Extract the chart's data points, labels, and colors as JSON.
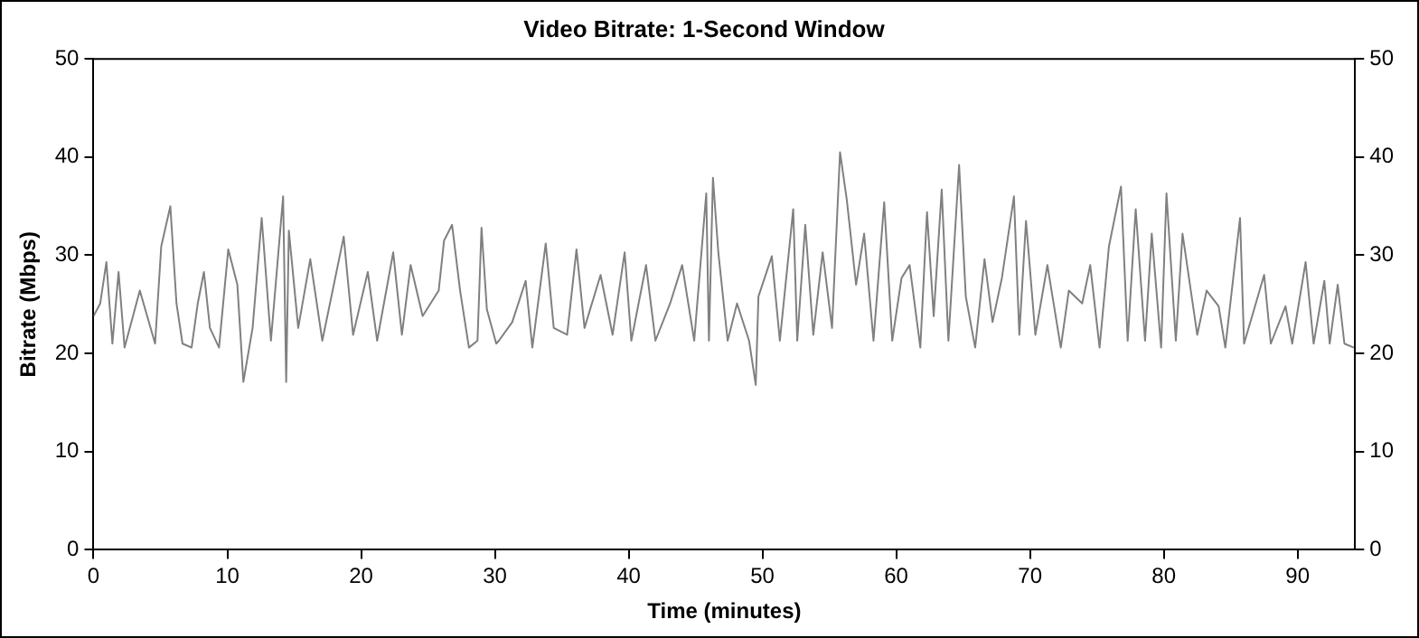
{
  "chart_data": {
    "type": "line",
    "title": "Video Bitrate: 1-Second Window",
    "xlabel": "Time (minutes)",
    "ylabel": "Bitrate (Mbps)",
    "xlim": [
      0,
      94.3
    ],
    "xticks": [
      0,
      10,
      20,
      30,
      40,
      50,
      60,
      70,
      80,
      90
    ],
    "ylim": [
      0,
      50
    ],
    "yticks": [
      0,
      10,
      20,
      30,
      40,
      50
    ],
    "y2lim": [
      0,
      50
    ],
    "y2ticks": [
      0,
      10,
      20,
      30,
      40,
      50
    ],
    "grid": false,
    "legend": false,
    "marker": "none",
    "line_style": "solid",
    "series": [
      {
        "color": "#808080",
        "x": [
          0,
          0.5,
          0.96,
          1.41,
          1.87,
          2.32,
          3.46,
          4.6,
          5.06,
          5.74,
          6.2,
          6.65,
          7.33,
          7.79,
          8.25,
          8.7,
          9.38,
          10.07,
          10.75,
          11.2,
          11.89,
          12.57,
          13.26,
          14.17,
          14.4,
          14.6,
          15.3,
          16.2,
          17.1,
          18.7,
          19.4,
          20.5,
          21.2,
          22.4,
          23.05,
          23.7,
          24.6,
          25.8,
          26.2,
          26.8,
          27.4,
          28.06,
          28.7,
          29.0,
          29.4,
          30.1,
          30.3,
          31.3,
          32.3,
          32.8,
          33.8,
          34.4,
          35.4,
          36.1,
          36.7,
          37.9,
          38.8,
          39.7,
          40.2,
          41.3,
          42,
          43.1,
          44,
          44.9,
          45.8,
          46,
          46.3,
          46.7,
          47.4,
          48.1,
          49,
          49.5,
          49.7,
          50.7,
          51.3,
          52.3,
          52.6,
          53.2,
          53.8,
          54.5,
          55.2,
          55.8,
          56.3,
          57,
          57.6,
          58.3,
          59.1,
          59.7,
          60.4,
          61,
          61.8,
          62.3,
          62.8,
          63.4,
          63.9,
          64.7,
          65.2,
          65.9,
          66.6,
          67.2,
          67.9,
          68.8,
          69.2,
          69.7,
          70.4,
          71.3,
          72.3,
          72.9,
          73.9,
          74.5,
          75.2,
          75.9,
          76.8,
          77.3,
          77.9,
          78.6,
          79.1,
          79.8,
          80.2,
          80.9,
          81.4,
          82.5,
          83.2,
          84.1,
          84.6,
          85.7,
          86,
          87.5,
          88,
          89.1,
          89.6,
          90.6,
          91.2,
          92,
          92.4,
          93,
          93.5,
          94.2
        ],
        "values": [
          23.8,
          25.1,
          29.3,
          21,
          28.3,
          20.6,
          26.4,
          21,
          30.9,
          35,
          25.1,
          21,
          20.6,
          25.1,
          28.3,
          22.6,
          20.6,
          30.6,
          27,
          17.1,
          22.6,
          33.8,
          21.3,
          36,
          17.1,
          32.5,
          22.6,
          29.6,
          21.3,
          31.9,
          21.9,
          28.3,
          21.3,
          30.3,
          21.9,
          29,
          23.8,
          26.4,
          31.5,
          33.1,
          26.4,
          20.6,
          21.3,
          32.8,
          24.5,
          21,
          21.3,
          23.2,
          27.4,
          20.6,
          31.2,
          22.6,
          21.9,
          30.6,
          22.6,
          28,
          21.9,
          30.3,
          21.3,
          29,
          21.3,
          25.1,
          29,
          21.3,
          36.3,
          21.3,
          37.9,
          30.3,
          21.3,
          25.1,
          21.3,
          16.8,
          25.8,
          29.9,
          21.3,
          34.7,
          21.3,
          33.1,
          21.9,
          30.3,
          22.6,
          40.5,
          35.7,
          27,
          32.2,
          21.3,
          35.4,
          21.3,
          27.7,
          29,
          20.6,
          34.4,
          23.8,
          36.7,
          21.3,
          39.2,
          25.8,
          20.6,
          29.6,
          23.2,
          27.7,
          36,
          21.9,
          33.5,
          21.9,
          29,
          20.6,
          26.4,
          25.1,
          29,
          20.6,
          30.9,
          37,
          21.3,
          34.7,
          21.3,
          32.2,
          20.6,
          36.3,
          21.3,
          32.2,
          21.9,
          26.4,
          24.8,
          20.6,
          33.8,
          21,
          28,
          21,
          24.8,
          21,
          29.3,
          21,
          27.4,
          21,
          27,
          21,
          20.6
        ]
      }
    ]
  }
}
